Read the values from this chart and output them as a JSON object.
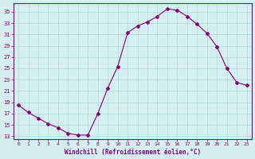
{
  "x": [
    0,
    1,
    2,
    3,
    4,
    5,
    6,
    7,
    8,
    9,
    10,
    11,
    12,
    13,
    14,
    15,
    16,
    17,
    18,
    19,
    20,
    21,
    22,
    23
  ],
  "y": [
    18.5,
    17.2,
    16.2,
    15.2,
    14.5,
    13.5,
    13.2,
    13.2,
    17.0,
    21.5,
    25.3,
    31.3,
    32.5,
    33.2,
    34.2,
    35.5,
    35.3,
    34.2,
    32.8,
    31.2,
    28.8,
    25.0,
    22.5,
    22.0
  ],
  "line_color": "#800080",
  "marker": "D",
  "marker_size": 2,
  "bg_color": "#d5eef0",
  "grid_color": "#b0d8dc",
  "xlabel": "Windchill (Refroidissement éolien,°C)",
  "yticks": [
    13,
    15,
    17,
    19,
    21,
    23,
    25,
    27,
    29,
    31,
    33,
    35
  ],
  "xticks": [
    0,
    1,
    2,
    3,
    4,
    5,
    6,
    7,
    8,
    9,
    10,
    11,
    12,
    13,
    14,
    15,
    16,
    17,
    18,
    19,
    20,
    21,
    22,
    23
  ],
  "ylim": [
    12.5,
    36.5
  ],
  "xlim": [
    -0.5,
    23.5
  ]
}
